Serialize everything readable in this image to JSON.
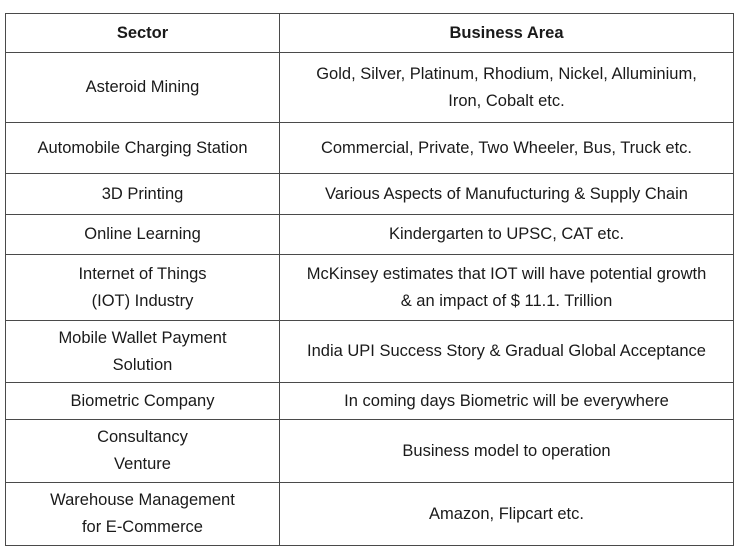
{
  "table": {
    "headers": [
      "Sector",
      "Business Area"
    ],
    "rows": [
      {
        "sector": "Asteroid Mining",
        "area": "Gold, Silver, Platinum, Rhodium, Nickel, Alluminium,\nIron, Cobalt etc."
      },
      {
        "sector": "Automobile Charging Station",
        "area": "Commercial, Private, Two Wheeler, Bus, Truck etc."
      },
      {
        "sector": "3D Printing",
        "area": "Various Aspects of Manufucturing & Supply Chain"
      },
      {
        "sector": "Online Learning",
        "area": "Kindergarten to UPSC, CAT etc."
      },
      {
        "sector": "Internet of Things\n(IOT) Industry",
        "area": "McKinsey estimates that IOT will have potential growth\n& an impact of $ 11.1. Trillion"
      },
      {
        "sector": "Mobile Wallet Payment\nSolution",
        "area": "India UPI Success Story & Gradual Global Acceptance"
      },
      {
        "sector": "Biometric Company",
        "area": "In coming days Biometric will be everywhere"
      },
      {
        "sector": "Consultancy\nVenture",
        "area": "Business model to operation"
      },
      {
        "sector": "Warehouse Management\nfor E-Commerce",
        "area": "Amazon, Flipcart etc."
      }
    ]
  }
}
